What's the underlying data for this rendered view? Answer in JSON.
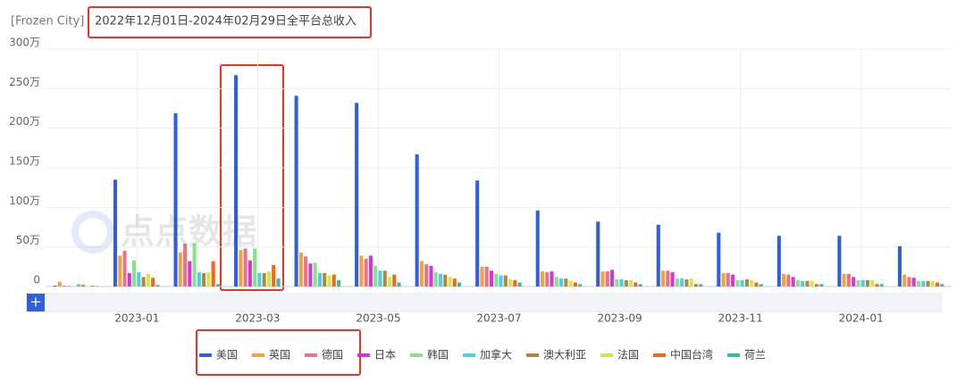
{
  "chart_data": {
    "type": "bar",
    "app": "[Frozen City]",
    "title": "2022年12月01日-2024年02月29日全平台总收入",
    "watermark": "点点数据",
    "button": "+",
    "categories": [
      null,
      "2023-01",
      null,
      "2023-03",
      null,
      "2023-05",
      null,
      "2023-07",
      null,
      "2023-09",
      null,
      "2023-11",
      null,
      "2024-01",
      null
    ],
    "ylim": [
      0,
      300
    ],
    "yticks": [
      0,
      {
        "value": 50,
        "label": "50万"
      },
      {
        "value": 100,
        "label": "100万"
      },
      {
        "value": 150,
        "label": "150万"
      },
      {
        "value": 200,
        "label": "200万"
      },
      {
        "value": 250,
        "label": "250万"
      },
      {
        "value": 300,
        "label": "300万"
      }
    ],
    "grid": true,
    "legend": "bottom",
    "series": [
      {
        "name": "美国",
        "color": "#2e5fdf",
        "values": [
          1,
          135,
          219,
          267,
          241,
          232,
          167,
          134,
          96,
          82,
          78,
          68,
          64,
          64,
          51
        ]
      },
      {
        "name": "英国",
        "color": "#f2a33a",
        "values": [
          6,
          39,
          43,
          46,
          43,
          39,
          32,
          25,
          19,
          19,
          20,
          17,
          16,
          16,
          15
        ]
      },
      {
        "name": "德国",
        "color": "#f0708a",
        "values": [
          1,
          45,
          54,
          48,
          38,
          35,
          28,
          25,
          18,
          19,
          20,
          17,
          15,
          16,
          12
        ]
      },
      {
        "name": "日本",
        "color": "#d236d6",
        "values": [
          0.5,
          17,
          32,
          33,
          29,
          39,
          26,
          20,
          19,
          21,
          18,
          15,
          12,
          12,
          11
        ]
      },
      {
        "name": "韩国",
        "color": "#86e38a",
        "values": [
          0.5,
          33,
          54,
          48,
          30,
          26,
          18,
          16,
          12,
          9,
          10,
          8,
          8,
          8,
          7
        ]
      },
      {
        "name": "加拿大",
        "color": "#48d2e6",
        "values": [
          3,
          18,
          18,
          17,
          17,
          20,
          16,
          14,
          10,
          9,
          10,
          8,
          7,
          8,
          7
        ]
      },
      {
        "name": "澳大利亚",
        "color": "#b3873a",
        "values": [
          2,
          12,
          17,
          17,
          17,
          20,
          15,
          14,
          10,
          8,
          9,
          9,
          7,
          8,
          7
        ]
      },
      {
        "name": "法国",
        "color": "#d5e54a",
        "values": [
          0.5,
          16,
          18,
          19,
          14,
          12,
          12,
          9,
          7,
          8,
          10,
          8,
          7,
          8,
          7
        ]
      },
      {
        "name": "中国台湾",
        "color": "#f2651a",
        "values": [
          1,
          11,
          32,
          27,
          15,
          15,
          10,
          8,
          5,
          5,
          3,
          5,
          3,
          3,
          5
        ]
      },
      {
        "name": "荷兰",
        "color": "#2fbfa2",
        "values": [
          0.5,
          2,
          3,
          10,
          8,
          5,
          5,
          5,
          3,
          3,
          3,
          3,
          3,
          3,
          3
        ]
      }
    ]
  }
}
